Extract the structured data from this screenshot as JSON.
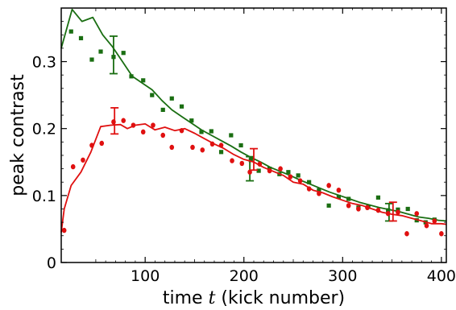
{
  "chart_data": {
    "type": "scatter",
    "xlabel_parts": [
      "time ",
      "t",
      " (kick number)"
    ],
    "ylabel": "peak contrast",
    "xlim": [
      15,
      405
    ],
    "ylim": [
      0,
      0.38
    ],
    "xticks": [
      100,
      200,
      300,
      400
    ],
    "xtick_labels": [
      "100",
      "200",
      "300",
      "400"
    ],
    "yticks": [
      0,
      0.1,
      0.2,
      0.3
    ],
    "ytick_labels": [
      "0",
      "0.1",
      "0.2",
      "0.3"
    ],
    "grid": false,
    "series": [
      {
        "color": "#1a6e12",
        "marker": "square",
        "points": [
          [
            25,
            0.345
          ],
          [
            35,
            0.335
          ],
          [
            46,
            0.303
          ],
          [
            55,
            0.315
          ],
          [
            68,
            0.307
          ],
          [
            78,
            0.313
          ],
          [
            86,
            0.278
          ],
          [
            98,
            0.272
          ],
          [
            107,
            0.25
          ],
          [
            118,
            0.228
          ],
          [
            127,
            0.245
          ],
          [
            137,
            0.233
          ],
          [
            147,
            0.212
          ],
          [
            157,
            0.195
          ],
          [
            167,
            0.196
          ],
          [
            177,
            0.165
          ],
          [
            187,
            0.19
          ],
          [
            197,
            0.175
          ],
          [
            207,
            0.153
          ],
          [
            215,
            0.137
          ],
          [
            226,
            0.14
          ],
          [
            236,
            0.132
          ],
          [
            245,
            0.135
          ],
          [
            255,
            0.13
          ],
          [
            266,
            0.12
          ],
          [
            276,
            0.108
          ],
          [
            286,
            0.085
          ],
          [
            296,
            0.098
          ],
          [
            306,
            0.095
          ],
          [
            316,
            0.082
          ],
          [
            326,
            0.083
          ],
          [
            336,
            0.097
          ],
          [
            346,
            0.078
          ],
          [
            356,
            0.079
          ],
          [
            366,
            0.08
          ],
          [
            375,
            0.063
          ],
          [
            384,
            0.06
          ],
          [
            393,
            0.064
          ]
        ],
        "line": [
          [
            15,
            0.32
          ],
          [
            26,
            0.378
          ],
          [
            36,
            0.36
          ],
          [
            47,
            0.366
          ],
          [
            57,
            0.34
          ],
          [
            67,
            0.322
          ],
          [
            77,
            0.3
          ],
          [
            87,
            0.278
          ],
          [
            97,
            0.268
          ],
          [
            107,
            0.258
          ],
          [
            117,
            0.242
          ],
          [
            127,
            0.228
          ],
          [
            137,
            0.218
          ],
          [
            147,
            0.208
          ],
          [
            157,
            0.198
          ],
          [
            167,
            0.19
          ],
          [
            177,
            0.182
          ],
          [
            187,
            0.174
          ],
          [
            197,
            0.165
          ],
          [
            207,
            0.157
          ],
          [
            217,
            0.15
          ],
          [
            227,
            0.142
          ],
          [
            237,
            0.136
          ],
          [
            247,
            0.13
          ],
          [
            257,
            0.123
          ],
          [
            267,
            0.117
          ],
          [
            277,
            0.111
          ],
          [
            287,
            0.105
          ],
          [
            297,
            0.1
          ],
          [
            307,
            0.095
          ],
          [
            317,
            0.09
          ],
          [
            327,
            0.086
          ],
          [
            337,
            0.082
          ],
          [
            347,
            0.079
          ],
          [
            357,
            0.076
          ],
          [
            367,
            0.072
          ],
          [
            377,
            0.068
          ],
          [
            387,
            0.066
          ],
          [
            397,
            0.063
          ],
          [
            405,
            0.062
          ]
        ],
        "error_bars": [
          [
            68,
            0.282,
            0.338
          ],
          [
            206,
            0.122,
            0.158
          ],
          [
            347,
            0.062,
            0.088
          ]
        ]
      },
      {
        "color": "#e01010",
        "marker": "circle",
        "points": [
          [
            18,
            0.048
          ],
          [
            27,
            0.143
          ],
          [
            37,
            0.153
          ],
          [
            46,
            0.175
          ],
          [
            56,
            0.178
          ],
          [
            68,
            0.21
          ],
          [
            78,
            0.212
          ],
          [
            88,
            0.205
          ],
          [
            98,
            0.195
          ],
          [
            108,
            0.205
          ],
          [
            118,
            0.19
          ],
          [
            127,
            0.172
          ],
          [
            137,
            0.197
          ],
          [
            148,
            0.172
          ],
          [
            158,
            0.168
          ],
          [
            168,
            0.177
          ],
          [
            177,
            0.175
          ],
          [
            188,
            0.152
          ],
          [
            198,
            0.148
          ],
          [
            206,
            0.135
          ],
          [
            216,
            0.147
          ],
          [
            226,
            0.137
          ],
          [
            237,
            0.14
          ],
          [
            247,
            0.128
          ],
          [
            257,
            0.122
          ],
          [
            266,
            0.11
          ],
          [
            276,
            0.103
          ],
          [
            286,
            0.115
          ],
          [
            296,
            0.108
          ],
          [
            306,
            0.085
          ],
          [
            316,
            0.08
          ],
          [
            325,
            0.082
          ],
          [
            336,
            0.078
          ],
          [
            346,
            0.073
          ],
          [
            356,
            0.075
          ],
          [
            365,
            0.043
          ],
          [
            375,
            0.073
          ],
          [
            385,
            0.055
          ],
          [
            393,
            0.062
          ],
          [
            400,
            0.043
          ]
        ],
        "line": [
          [
            15,
            0.045
          ],
          [
            18,
            0.08
          ],
          [
            25,
            0.115
          ],
          [
            35,
            0.135
          ],
          [
            45,
            0.165
          ],
          [
            55,
            0.203
          ],
          [
            65,
            0.205
          ],
          [
            75,
            0.206
          ],
          [
            82,
            0.2
          ],
          [
            90,
            0.205
          ],
          [
            100,
            0.207
          ],
          [
            110,
            0.198
          ],
          [
            120,
            0.202
          ],
          [
            130,
            0.197
          ],
          [
            140,
            0.2
          ],
          [
            150,
            0.193
          ],
          [
            160,
            0.185
          ],
          [
            170,
            0.177
          ],
          [
            180,
            0.17
          ],
          [
            190,
            0.161
          ],
          [
            200,
            0.154
          ],
          [
            210,
            0.15
          ],
          [
            220,
            0.142
          ],
          [
            230,
            0.136
          ],
          [
            240,
            0.13
          ],
          [
            250,
            0.12
          ],
          [
            260,
            0.117
          ],
          [
            270,
            0.108
          ],
          [
            280,
            0.104
          ],
          [
            290,
            0.098
          ],
          [
            300,
            0.093
          ],
          [
            310,
            0.088
          ],
          [
            320,
            0.085
          ],
          [
            330,
            0.08
          ],
          [
            340,
            0.075
          ],
          [
            350,
            0.072
          ],
          [
            360,
            0.07
          ],
          [
            370,
            0.066
          ],
          [
            380,
            0.062
          ],
          [
            390,
            0.058
          ],
          [
            400,
            0.058
          ],
          [
            405,
            0.057
          ]
        ],
        "error_bars": [
          [
            69,
            0.192,
            0.231
          ],
          [
            210,
            0.138,
            0.17
          ],
          [
            351,
            0.062,
            0.09
          ]
        ]
      }
    ]
  }
}
